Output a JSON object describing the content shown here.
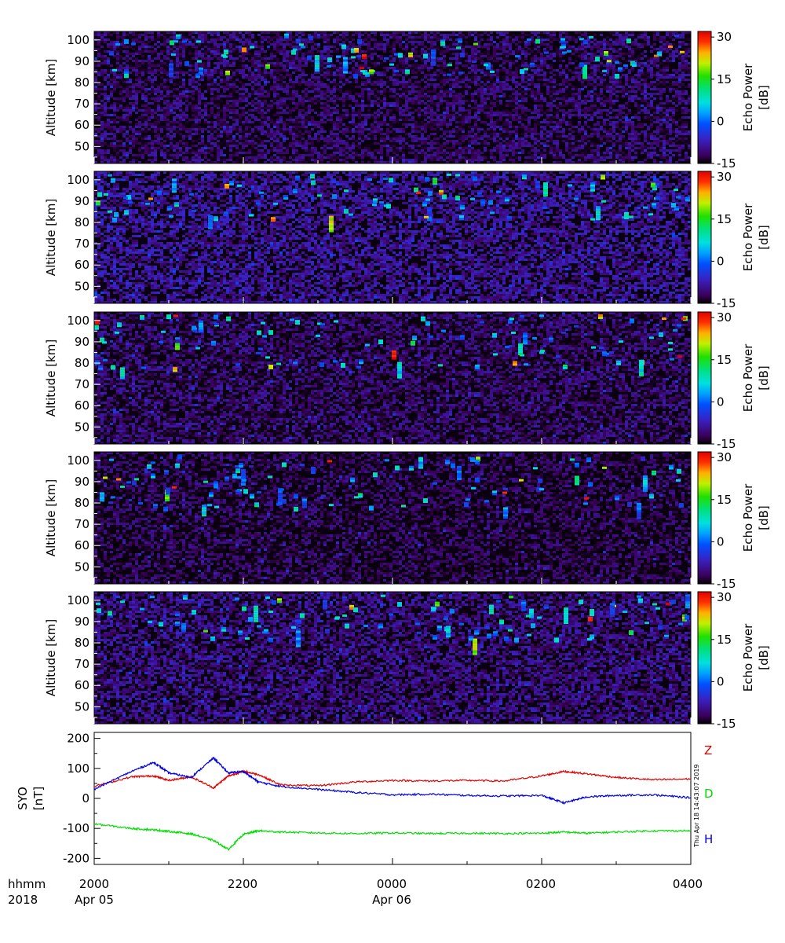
{
  "chart_data": [
    {
      "type": "heatmap",
      "panel": 1,
      "ylabel": "Altitude [km]",
      "y_ticks": [
        "100",
        "90",
        "80",
        "70",
        "60",
        "50"
      ],
      "ylim": [
        42,
        104
      ],
      "colorbar": {
        "label_line1": "Echo Power",
        "label_line2": "[dB]",
        "ticks": [
          "30",
          "15",
          "0",
          "-15"
        ],
        "range": [
          -15,
          32
        ]
      },
      "noise_floor_db": -12,
      "echo_layer_km": [
        84,
        103
      ]
    },
    {
      "type": "heatmap",
      "panel": 2,
      "ylabel": "Altitude [km]",
      "y_ticks": [
        "100",
        "90",
        "80",
        "70",
        "60",
        "50"
      ],
      "ylim": [
        42,
        104
      ],
      "colorbar": {
        "label_line1": "Echo Power",
        "label_line2": "[dB]",
        "ticks": [
          "30",
          "15",
          "0",
          "-15"
        ],
        "range": [
          -15,
          32
        ]
      },
      "noise_floor_db": -10,
      "echo_layer_km": [
        82,
        103
      ]
    },
    {
      "type": "heatmap",
      "panel": 3,
      "ylabel": "Altitude [km]",
      "y_ticks": [
        "100",
        "90",
        "80",
        "70",
        "60",
        "50"
      ],
      "ylim": [
        42,
        104
      ],
      "colorbar": {
        "label_line1": "Echo Power",
        "label_line2": "[dB]",
        "ticks": [
          "30",
          "15",
          "0",
          "-15"
        ],
        "range": [
          -15,
          32
        ]
      },
      "noise_floor_db": -12,
      "echo_layer_km": [
        78,
        103
      ]
    },
    {
      "type": "heatmap",
      "panel": 4,
      "ylabel": "Altitude [km]",
      "y_ticks": [
        "100",
        "90",
        "80",
        "70",
        "60",
        "50"
      ],
      "ylim": [
        42,
        104
      ],
      "colorbar": {
        "label_line1": "Echo Power",
        "label_line2": "[dB]",
        "ticks": [
          "30",
          "15",
          "0",
          "-15"
        ],
        "range": [
          -15,
          32
        ]
      },
      "noise_floor_db": -13,
      "echo_layer_km": [
        78,
        103
      ]
    },
    {
      "type": "heatmap",
      "panel": 5,
      "ylabel": "Altitude [km]",
      "y_ticks": [
        "100",
        "90",
        "80",
        "70",
        "60",
        "50"
      ],
      "ylim": [
        42,
        104
      ],
      "colorbar": {
        "label_line1": "Echo Power",
        "label_line2": "[dB]",
        "ticks": [
          "30",
          "15",
          "0",
          "-15"
        ],
        "range": [
          -15,
          32
        ]
      },
      "noise_floor_db": -11,
      "echo_layer_km": [
        82,
        103
      ]
    },
    {
      "type": "line",
      "panel": 6,
      "ylabel_line1": "SYO",
      "ylabel_line2": "[nT]",
      "y_ticks": [
        "200",
        "100",
        "0",
        "-100",
        "-200"
      ],
      "ylim": [
        -220,
        220
      ],
      "x_hours": [
        0,
        0.5,
        0.8,
        1.0,
        1.3,
        1.6,
        1.8,
        2.0,
        2.2,
        2.5,
        3.0,
        3.5,
        4.0,
        4.5,
        5.0,
        5.5,
        6.0,
        6.3,
        6.6,
        7.0,
        7.5,
        8.0
      ],
      "series": [
        {
          "name": "Z",
          "color": "#e00000",
          "values": [
            40,
            72,
            75,
            60,
            72,
            35,
            75,
            90,
            80,
            45,
            42,
            55,
            60,
            58,
            60,
            58,
            75,
            90,
            82,
            70,
            62,
            65
          ]
        },
        {
          "name": "D",
          "color": "#00dd00",
          "values": [
            -85,
            -100,
            -105,
            -110,
            -118,
            -140,
            -170,
            -120,
            -108,
            -112,
            -115,
            -117,
            -115,
            -117,
            -116,
            -117,
            -116,
            -112,
            -116,
            -112,
            -108,
            -108
          ]
        },
        {
          "name": "H",
          "color": "#0000dd",
          "values": [
            30,
            90,
            120,
            85,
            70,
            135,
            85,
            90,
            55,
            40,
            30,
            20,
            12,
            14,
            10,
            8,
            10,
            -15,
            5,
            10,
            12,
            2
          ]
        }
      ]
    }
  ],
  "x_axis": {
    "title_line1": "hhmm",
    "title_line2": "2018",
    "tick_labels": [
      "2000",
      "2200",
      "0000",
      "0200",
      "0400"
    ],
    "date_labels": [
      "Apr 05",
      "Apr 06"
    ]
  },
  "footer_stamp": "Thu Apr 18 14:43:07 2019"
}
